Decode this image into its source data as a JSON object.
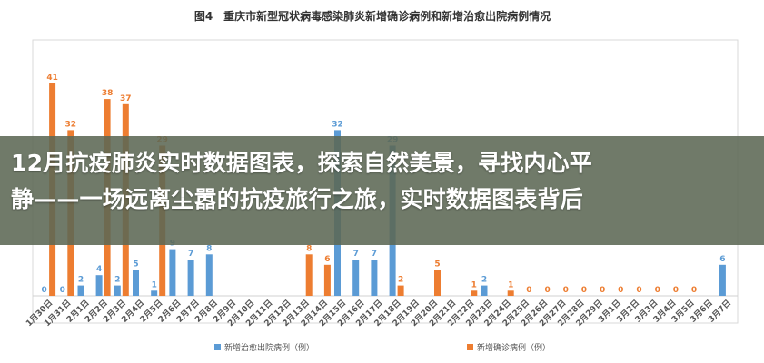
{
  "overlay": {
    "line1": "12月抗疫肺炎实时数据图表，探索自然美景，寻找内心平",
    "line2": "静——一场远离尘嚣的抗疫旅行之旅，实时数据图表背后"
  },
  "colors": {
    "recovered": "#5b9bd5",
    "confirmed": "#ed7d31"
  },
  "chart_data": {
    "type": "bar",
    "title": "图4　重庆市新型冠状病毒感染肺炎新增确诊病例和新增治愈出院病例情况",
    "categories": [
      "1月30日",
      "1月31日",
      "2月1日",
      "2月2日",
      "2月3日",
      "2月4日",
      "2月5日",
      "2月6日",
      "2月7日",
      "2月8日",
      "2月9日",
      "2月10日",
      "2月11日",
      "2月12日",
      "2月13日",
      "2月14日",
      "2月15日",
      "2月16日",
      "2月17日",
      "2月18日",
      "2月19日",
      "2月20日",
      "2月21日",
      "2月22日",
      "2月23日",
      "2月24日",
      "2月25日",
      "2月26日",
      "2月27日",
      "2月28日",
      "2月29日",
      "3月1日",
      "3月2日",
      "3月3日",
      "3月4日",
      "3月5日",
      "3月6日",
      "3月7日"
    ],
    "series": [
      {
        "name": "新增治愈出院病例（例）",
        "values": [
          0,
          0,
          2,
          4,
          2,
          5,
          1,
          9,
          7,
          8,
          null,
          null,
          null,
          null,
          null,
          null,
          32,
          7,
          7,
          29,
          null,
          null,
          null,
          null,
          2,
          null,
          null,
          null,
          null,
          null,
          null,
          null,
          null,
          null,
          null,
          null,
          null,
          6
        ],
        "labels": [
          "0",
          "0",
          "2",
          "4",
          "2",
          "5",
          "1",
          "9",
          "7",
          "8",
          "",
          "",
          "",
          "",
          "",
          "",
          "32",
          "7",
          "7",
          "29",
          "",
          "",
          "",
          "",
          "2",
          "",
          "",
          "",
          "",
          "",
          "",
          "",
          "",
          "",
          "",
          "",
          "",
          "6"
        ]
      },
      {
        "name": "新增确诊病例（例）",
        "values": [
          41,
          32,
          null,
          38,
          37,
          null,
          29,
          null,
          null,
          null,
          null,
          null,
          null,
          null,
          8,
          6,
          null,
          null,
          null,
          2,
          null,
          5,
          null,
          1,
          null,
          1,
          0,
          0,
          0,
          0,
          0,
          0,
          0,
          0,
          0,
          0,
          null,
          null
        ],
        "labels": [
          "41",
          "32",
          "",
          "38",
          "37",
          "",
          "29",
          "",
          "",
          "",
          "",
          "",
          "",
          "",
          "8",
          "6",
          "",
          "",
          "",
          "2",
          "",
          "5",
          "",
          "1",
          "",
          "1",
          "0",
          "0",
          "0",
          "0",
          "0",
          "0",
          "0",
          "0",
          "0",
          "0",
          "",
          ""
        ]
      }
    ],
    "legend_position": "bottom",
    "grid": false
  }
}
